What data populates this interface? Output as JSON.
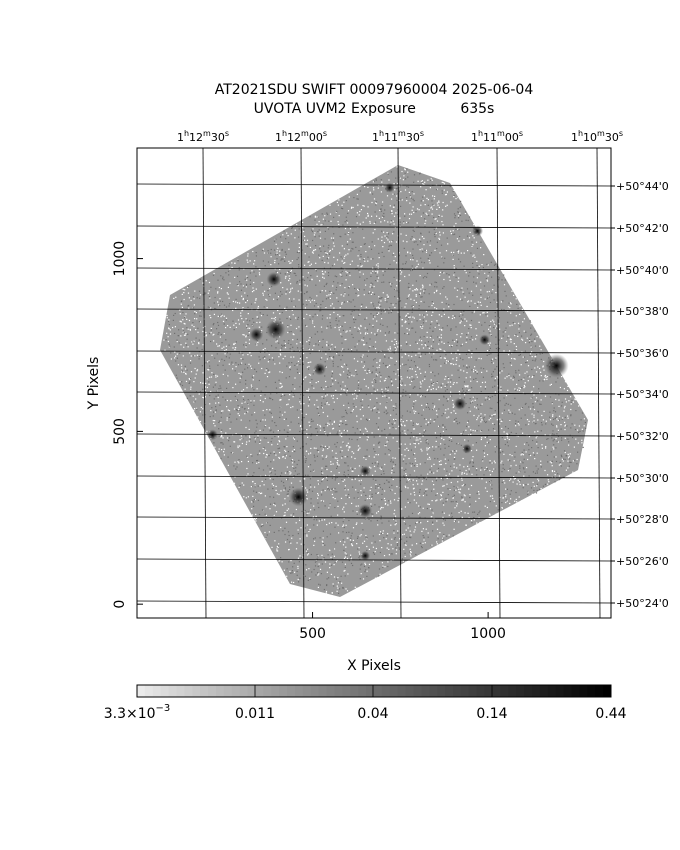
{
  "title": {
    "line1": "AT2021SDU SWIFT 00097960004 2025-06-04",
    "line2": "UVOTA UVM2 Exposure          635s"
  },
  "axes": {
    "xlabel": "X Pixels",
    "ylabel": "Y Pixels",
    "x_ticks": [
      {
        "value": 500,
        "label": "500"
      },
      {
        "value": 1000,
        "label": "1000"
      }
    ],
    "y_ticks": [
      {
        "value": 0,
        "label": "0"
      },
      {
        "value": 500,
        "label": "500"
      },
      {
        "value": 1000,
        "label": "1000"
      }
    ],
    "x_range": [
      0,
      1350
    ],
    "y_range": [
      -40,
      1320
    ]
  },
  "ra_ticks": [
    {
      "h": "1",
      "m": "12",
      "s": "30"
    },
    {
      "h": "1",
      "m": "12",
      "s": "00"
    },
    {
      "h": "1",
      "m": "11",
      "s": "30"
    },
    {
      "h": "1",
      "m": "11",
      "s": "00"
    },
    {
      "h": "1",
      "m": "10",
      "s": "30"
    }
  ],
  "dec_ticks": [
    "+50°44'0",
    "+50°42'0",
    "+50°40'0",
    "+50°38'0",
    "+50°36'0",
    "+50°34'0",
    "+50°32'0",
    "+50°30'0",
    "+50°28'0",
    "+50°26'0",
    "+50°24'0"
  ],
  "colorbar": {
    "scale": "log",
    "min": 0.0033,
    "max": 0.44,
    "labels": [
      {
        "base": "3.3×10",
        "exp": "−3"
      },
      {
        "base": "0.011",
        "exp": ""
      },
      {
        "base": "0.04",
        "exp": ""
      },
      {
        "base": "0.14",
        "exp": ""
      },
      {
        "base": "0.44",
        "exp": ""
      }
    ]
  },
  "sources": [
    {
      "x": 1195,
      "y": 690,
      "brightness": 1.0
    },
    {
      "x": 395,
      "y": 795,
      "brightness": 0.8
    },
    {
      "x": 340,
      "y": 780,
      "brightness": 0.5
    },
    {
      "x": 390,
      "y": 940,
      "brightness": 0.55
    },
    {
      "x": 520,
      "y": 680,
      "brightness": 0.45
    },
    {
      "x": 460,
      "y": 310,
      "brightness": 0.75
    },
    {
      "x": 650,
      "y": 270,
      "brightness": 0.5
    },
    {
      "x": 650,
      "y": 385,
      "brightness": 0.35
    },
    {
      "x": 920,
      "y": 580,
      "brightness": 0.45
    },
    {
      "x": 990,
      "y": 765,
      "brightness": 0.35
    },
    {
      "x": 970,
      "y": 1080,
      "brightness": 0.35
    },
    {
      "x": 215,
      "y": 490,
      "brightness": 0.35
    },
    {
      "x": 940,
      "y": 450,
      "brightness": 0.3
    },
    {
      "x": 650,
      "y": 140,
      "brightness": 0.3
    },
    {
      "x": 720,
      "y": 1205,
      "brightness": 0.3
    }
  ]
}
